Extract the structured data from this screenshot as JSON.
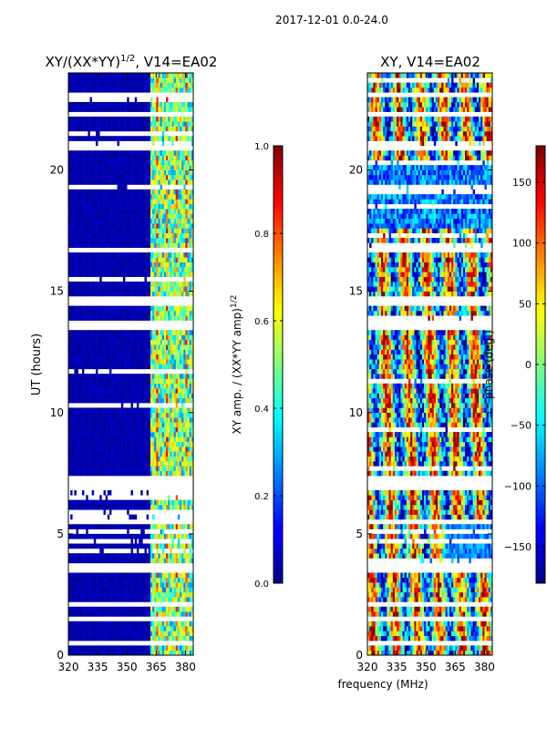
{
  "suptitle": "2017-12-01 0.0-24.0",
  "chart_data": [
    {
      "type": "heatmap",
      "title": "XY/(XX*YY)$^{1/2}$, V14=EA02",
      "title_main": "XY/(XX*YY)",
      "title_sup": "1/2",
      "title_tail": ", V14=EA02",
      "xlabel": "",
      "ylabel": "UT (hours)",
      "xlim": [
        320,
        384
      ],
      "ylim": [
        0,
        24
      ],
      "xticks": [
        320,
        335,
        350,
        365,
        380
      ],
      "xtick_labels": [
        "320",
        "335",
        "350",
        "365",
        "380"
      ],
      "yticks": [
        0,
        5,
        10,
        15,
        20
      ],
      "ytick_labels": [
        "0",
        "5",
        "10",
        "15",
        "20"
      ],
      "colorbar": {
        "label_main": "XY amp. / (XX*YY amp)",
        "label_sup": "1/2",
        "range": [
          0.0,
          1.0
        ],
        "ticks": [
          0.0,
          0.2,
          0.4,
          0.6,
          0.8,
          1.0
        ],
        "tick_labels": [
          "0.0",
          "0.2",
          "0.4",
          "0.6",
          "0.8",
          "1.0"
        ],
        "colormap": "jet"
      }
    },
    {
      "type": "heatmap",
      "title": "XY, V14=EA02",
      "xlabel": "frequency (MHz)",
      "ylabel": "",
      "xlim": [
        320,
        384
      ],
      "ylim": [
        0,
        24
      ],
      "xticks": [
        320,
        335,
        350,
        365,
        380
      ],
      "xtick_labels": [
        "320",
        "335",
        "350",
        "365",
        "380"
      ],
      "yticks": [
        0,
        5,
        10,
        15,
        20
      ],
      "ytick_labels": [
        "0",
        "5",
        "10",
        "15",
        "20"
      ],
      "colorbar": {
        "label": "phase (deg.)",
        "range": [
          -180,
          180
        ],
        "ticks": [
          -150,
          -100,
          -50,
          0,
          50,
          100,
          150
        ],
        "tick_labels": [
          "−150",
          "−100",
          "−50",
          "0",
          "50",
          "100",
          "150"
        ],
        "colormap": "jet"
      }
    }
  ]
}
